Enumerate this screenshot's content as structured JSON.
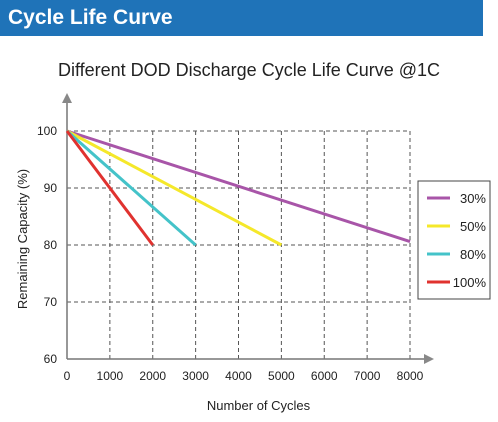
{
  "header": {
    "title": "Cycle Life Curve"
  },
  "colors": {
    "header_bg": "#1f73b8",
    "series_30": "#a855a8",
    "series_50": "#f5e82a",
    "series_80": "#44c3c9",
    "series_100": "#e0322f",
    "grid": "#555555"
  },
  "chart_data": {
    "type": "line",
    "title": "Different DOD Discharge Cycle Life Curve @1C",
    "xlabel": "Number of Cycles",
    "ylabel": "Remaining Capacity (%)",
    "xlim": [
      0,
      8000
    ],
    "ylim": [
      60,
      100
    ],
    "xticks": [
      0,
      1000,
      2000,
      3000,
      4000,
      5000,
      6000,
      7000,
      8000
    ],
    "yticks": [
      60,
      70,
      80,
      90,
      100
    ],
    "grid": true,
    "legend_position": "right",
    "series": [
      {
        "name": "30%",
        "color": "#a855a8",
        "x": [
          0,
          8000
        ],
        "y": [
          100,
          80.6
        ]
      },
      {
        "name": "50%",
        "color": "#f5e82a",
        "x": [
          0,
          5000
        ],
        "y": [
          100,
          80
        ]
      },
      {
        "name": "80%",
        "color": "#44c3c9",
        "x": [
          0,
          3000
        ],
        "y": [
          100,
          80
        ]
      },
      {
        "name": "100%",
        "color": "#e0322f",
        "x": [
          0,
          2000
        ],
        "y": [
          100,
          80
        ]
      }
    ]
  }
}
